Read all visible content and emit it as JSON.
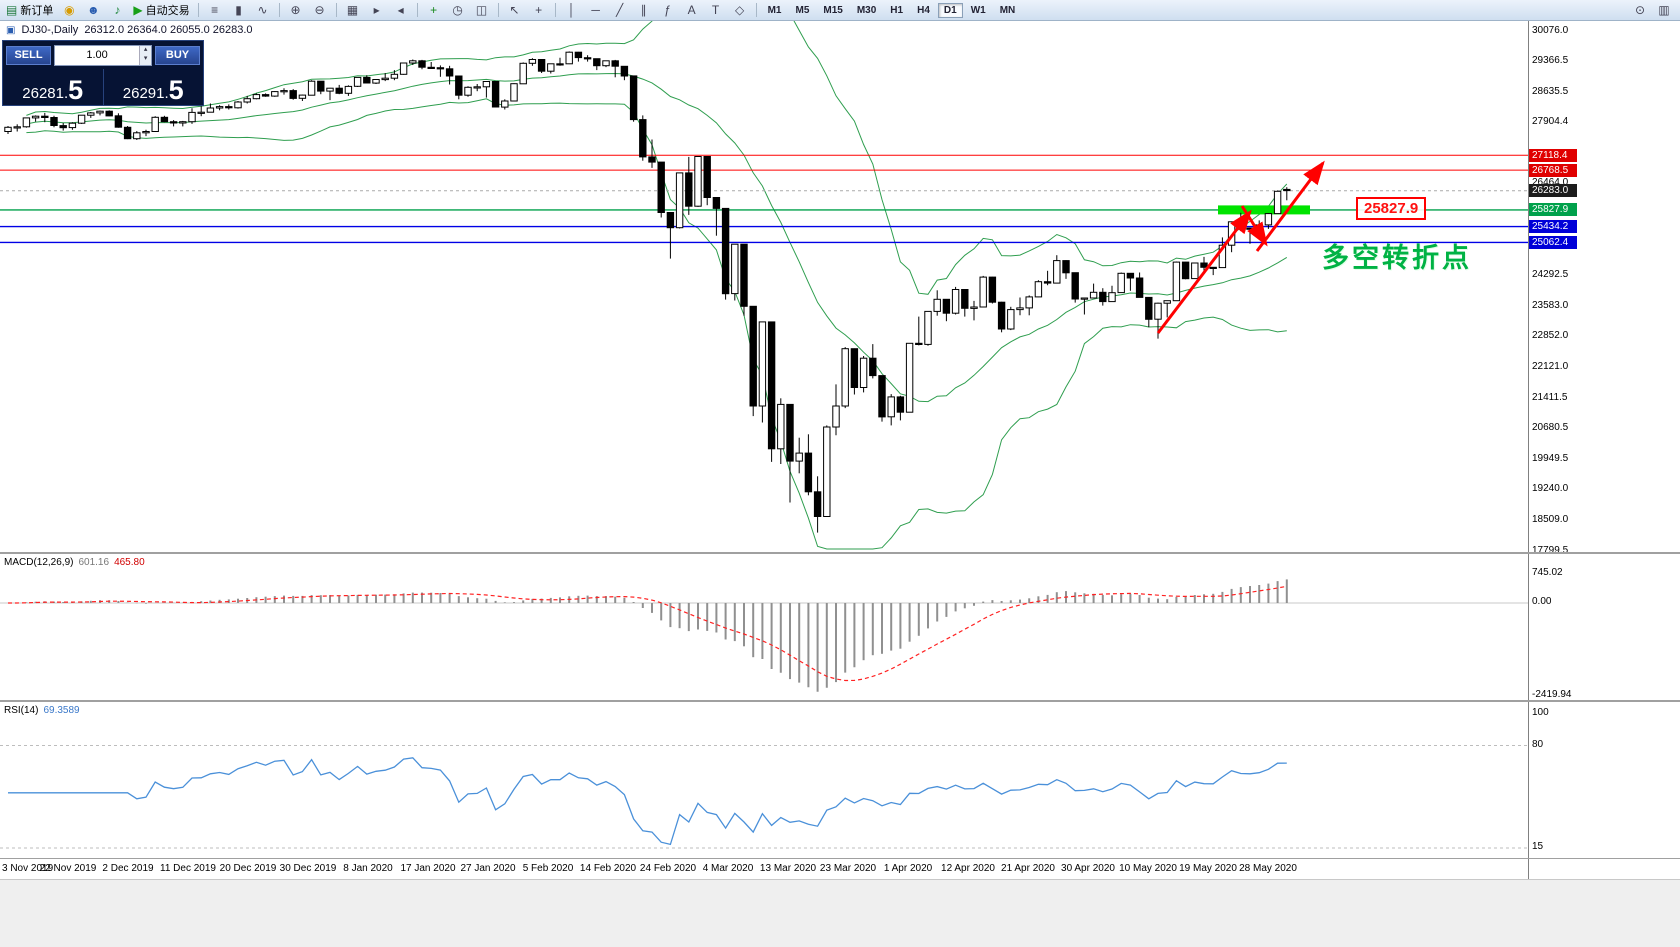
{
  "toolbar": {
    "left_items": [
      {
        "name": "new-order-button",
        "glyph": "▤",
        "glyph_color": "#1f7a3d",
        "label": "新订单"
      },
      {
        "name": "gold-icon",
        "glyph": "◉",
        "glyph_color": "#d79b00"
      },
      {
        "name": "profile-icon",
        "glyph": "☻",
        "glyph_color": "#2a5db0"
      },
      {
        "name": "sound-icon",
        "glyph": "♪",
        "glyph_color": "#22883e"
      },
      {
        "name": "autotrade-button",
        "glyph": "▶",
        "glyph_color": "#18a018",
        "label": "自动交易"
      }
    ],
    "groups": [
      {
        "name": "chart-type",
        "items": [
          {
            "name": "bar-chart-icon",
            "glyph": "≡"
          },
          {
            "name": "candlestick-icon",
            "glyph": "▮"
          },
          {
            "name": "line-chart-icon",
            "glyph": "∿"
          }
        ]
      },
      {
        "name": "zoom",
        "items": [
          {
            "name": "zoom-in-icon",
            "glyph": "⊕"
          },
          {
            "name": "zoom-out-icon",
            "glyph": "⊖"
          }
        ]
      },
      {
        "name": "windows",
        "items": [
          {
            "name": "tile-windows-icon",
            "glyph": "▦"
          },
          {
            "name": "auto-scroll-icon",
            "glyph": "▸"
          },
          {
            "name": "chart-shift-icon",
            "glyph": "◂"
          }
        ]
      },
      {
        "name": "indicators",
        "items": [
          {
            "name": "add-indicator-icon",
            "glyph": "+",
            "glyph_color": "#18891d"
          },
          {
            "name": "cycles-icon",
            "glyph": "◷"
          },
          {
            "name": "objects-list-icon",
            "glyph": "◫"
          }
        ]
      },
      {
        "name": "cursor",
        "items": [
          {
            "name": "cursor-icon",
            "glyph": "↖"
          },
          {
            "name": "crosshair-icon",
            "glyph": "+"
          }
        ]
      },
      {
        "name": "draw",
        "items": [
          {
            "name": "vertical-line-icon",
            "glyph": "│"
          },
          {
            "name": "horizontal-line-icon",
            "glyph": "─"
          },
          {
            "name": "trendline-icon",
            "glyph": "╱"
          },
          {
            "name": "channel-icon",
            "glyph": "∥"
          },
          {
            "name": "fibonacci-icon",
            "glyph": "ƒ"
          },
          {
            "name": "text-icon",
            "glyph": "A"
          },
          {
            "name": "label-icon",
            "glyph": "T"
          },
          {
            "name": "shapes-icon",
            "glyph": "◇"
          }
        ]
      }
    ],
    "timeframes": [
      {
        "label": "M1"
      },
      {
        "label": "M5"
      },
      {
        "label": "M15"
      },
      {
        "label": "M30"
      },
      {
        "label": "H1"
      },
      {
        "label": "H4"
      },
      {
        "label": "D1",
        "active": true
      },
      {
        "label": "W1"
      },
      {
        "label": "MN"
      }
    ],
    "right_items": [
      {
        "name": "search-icon",
        "glyph": "⊙"
      },
      {
        "name": "new-chart-icon",
        "glyph": "▥"
      }
    ]
  },
  "icons": {
    "chart_title_icon": "▣",
    "spinner_up": "▴",
    "spinner_down": "▾"
  },
  "quote_panel": {
    "sell_label": "SELL",
    "buy_label": "BUY",
    "volume": "1.00",
    "sell_price": "26281.5",
    "buy_price": "26291.5",
    "sell_price_small": "26281.",
    "sell_price_big": "5",
    "buy_price_small": "26291.",
    "buy_price_big": "5"
  },
  "chart": {
    "symbol_text": "DJ30-,Daily",
    "ohlc_text": "26312.0 26364.0 26055.0 26283.0",
    "y_axis": [
      {
        "text": "30076.0",
        "price": 30076.0,
        "kind": "regular"
      },
      {
        "text": "29366.5",
        "price": 29366.5,
        "kind": "regular"
      },
      {
        "text": "28635.5",
        "price": 28635.5,
        "kind": "regular"
      },
      {
        "text": "27904.4",
        "price": 27904.4,
        "kind": "regular"
      },
      {
        "text": "27118.4",
        "price": 27118.4,
        "kind": "red"
      },
      {
        "text": "26768.5",
        "price": 26768.5,
        "kind": "red"
      },
      {
        "text": "26464.0",
        "price": 26464.0,
        "kind": "regular"
      },
      {
        "text": "26283.0",
        "price": 26283.0,
        "kind": "current"
      },
      {
        "text": "25827.9",
        "price": 25827.9,
        "kind": "green"
      },
      {
        "text": "25434.2",
        "price": 25434.2,
        "kind": "blue"
      },
      {
        "text": "25062.4",
        "price": 25062.4,
        "kind": "blue"
      },
      {
        "text": "24292.5",
        "price": 24292.5,
        "kind": "regular"
      },
      {
        "text": "23583.0",
        "price": 23583.0,
        "kind": "regular"
      },
      {
        "text": "22852.0",
        "price": 22852.0,
        "kind": "regular"
      },
      {
        "text": "22121.0",
        "price": 22121.0,
        "kind": "regular"
      },
      {
        "text": "21411.5",
        "price": 21411.5,
        "kind": "regular"
      },
      {
        "text": "20680.5",
        "price": 20680.5,
        "kind": "regular"
      },
      {
        "text": "19949.5",
        "price": 19949.5,
        "kind": "regular"
      },
      {
        "text": "19240.0",
        "price": 19240.0,
        "kind": "regular"
      },
      {
        "text": "18509.0",
        "price": 18509.0,
        "kind": "regular"
      },
      {
        "text": "17799.5",
        "price": 17799.5,
        "kind": "regular"
      }
    ],
    "x_axis": [
      "3 Nov 2019",
      "22 Nov 2019",
      "2 Dec 2019",
      "11 Dec 2019",
      "20 Dec 2019",
      "30 Dec 2019",
      "8 Jan 2020",
      "17 Jan 2020",
      "27 Jan 2020",
      "5 Feb 2020",
      "14 Feb 2020",
      "24 Feb 2020",
      "4 Mar 2020",
      "13 Mar 2020",
      "23 Mar 2020",
      "1 Apr 2020",
      "12 Apr 2020",
      "21 Apr 2020",
      "30 Apr 2020",
      "10 May 2020",
      "19 May 2020",
      "28 May 2020"
    ]
  },
  "macd": {
    "label": "MACD(12,26,9)",
    "value_main": "601.16",
    "value_signal": "465.80",
    "axis": [
      {
        "text": "745.02",
        "value": 745.02
      },
      {
        "text": "0.00",
        "value": 0
      },
      {
        "text": "-2419.94",
        "value": -2419.94
      }
    ]
  },
  "rsi": {
    "label": "RSI(14)",
    "value": "69.3589",
    "axis": [
      {
        "text": "100",
        "value": 100
      },
      {
        "text": "80",
        "value": 80
      },
      {
        "text": "15",
        "value": 15
      }
    ]
  },
  "annotations": {
    "price_label": "25827.9",
    "turning_point_text": "多空转折点"
  },
  "chart_data": {
    "type": "candlestick",
    "symbol": "DJ30-",
    "timeframe": "Daily",
    "last_ohlc": {
      "open": 26312.0,
      "high": 26364.0,
      "low": 26055.0,
      "close": 26283.0
    },
    "ylim": [
      17799.5,
      30076.0
    ],
    "overlays": {
      "bollinger_bands": {
        "period": 20,
        "deviation": 2,
        "color": "#2f9e4f"
      },
      "horizontal_lines": [
        {
          "price": 27118.4,
          "color": "#ff0000"
        },
        {
          "price": 26768.5,
          "color": "#ff0000"
        },
        {
          "price": 25827.9,
          "color": "#00a14b"
        },
        {
          "price": 25434.2,
          "color": "#0000e6"
        },
        {
          "price": 25062.4,
          "color": "#0000e6"
        }
      ],
      "highlight_zone": {
        "price_center": 25827.9,
        "label": "25827.9"
      }
    },
    "indicators": [
      {
        "name": "MACD",
        "params": "12,26,9",
        "current": "601.16 465.80",
        "axis_labels": [
          "745.02",
          "0.00",
          "-2419.94"
        ]
      },
      {
        "name": "RSI",
        "params": "14",
        "current": "69.3589",
        "axis_labels": [
          "100",
          "80",
          "15"
        ]
      }
    ],
    "candles_ohlc": [
      [
        27680,
        27810,
        27620,
        27780
      ],
      [
        27780,
        27850,
        27680,
        27790
      ],
      [
        27790,
        28010,
        27770,
        28000
      ],
      [
        28000,
        28060,
        27910,
        28040
      ],
      [
        28040,
        28120,
        27900,
        28010
      ],
      [
        28010,
        28050,
        27780,
        27820
      ],
      [
        27820,
        27880,
        27700,
        27770
      ],
      [
        27770,
        27900,
        27720,
        27875
      ],
      [
        27875,
        28070,
        27860,
        28065
      ],
      [
        28065,
        28140,
        28000,
        28120
      ],
      [
        28120,
        28175,
        28060,
        28160
      ],
      [
        28160,
        28180,
        28040,
        28050
      ],
      [
        28050,
        28110,
        27770,
        27780
      ],
      [
        27780,
        27810,
        27500,
        27510
      ],
      [
        27510,
        27690,
        27480,
        27650
      ],
      [
        27650,
        27720,
        27570,
        27680
      ],
      [
        27680,
        28040,
        27670,
        28015
      ],
      [
        28015,
        28050,
        27900,
        27910
      ],
      [
        27910,
        27950,
        27800,
        27880
      ],
      [
        27880,
        27930,
        27800,
        27910
      ],
      [
        27910,
        28230,
        27860,
        28130
      ],
      [
        28130,
        28290,
        28040,
        28135
      ],
      [
        28135,
        28340,
        28130,
        28235
      ],
      [
        28235,
        28300,
        28180,
        28267
      ],
      [
        28267,
        28320,
        28200,
        28240
      ],
      [
        28240,
        28400,
        28220,
        28377
      ],
      [
        28377,
        28520,
        28340,
        28455
      ],
      [
        28455,
        28580,
        28440,
        28551
      ],
      [
        28551,
        28580,
        28500,
        28515
      ],
      [
        28515,
        28630,
        28500,
        28621
      ],
      [
        28621,
        28700,
        28550,
        28645
      ],
      [
        28645,
        28680,
        28430,
        28462
      ],
      [
        28462,
        28550,
        28400,
        28538
      ],
      [
        28538,
        28890,
        28530,
        28868
      ],
      [
        28868,
        28870,
        28560,
        28634
      ],
      [
        28634,
        28710,
        28420,
        28703
      ],
      [
        28703,
        28780,
        28560,
        28583
      ],
      [
        28583,
        28770,
        28520,
        28745
      ],
      [
        28745,
        28960,
        28730,
        28956
      ],
      [
        28956,
        29010,
        28820,
        28823
      ],
      [
        28823,
        28910,
        28800,
        28907
      ],
      [
        28907,
        29060,
        28870,
        28939
      ],
      [
        28939,
        29130,
        28890,
        29030
      ],
      [
        29030,
        29300,
        29020,
        29297
      ],
      [
        29297,
        29380,
        29250,
        29348
      ],
      [
        29348,
        29370,
        29150,
        29196
      ],
      [
        29196,
        29320,
        29160,
        29186
      ],
      [
        29186,
        29240,
        28970,
        29160
      ],
      [
        29160,
        29230,
        28790,
        28990
      ],
      [
        28990,
        28990,
        28440,
        28536
      ],
      [
        28536,
        28750,
        28500,
        28723
      ],
      [
        28723,
        28800,
        28630,
        28734
      ],
      [
        28734,
        28870,
        28480,
        28859
      ],
      [
        28859,
        28860,
        28250,
        28256
      ],
      [
        28256,
        28440,
        28200,
        28400
      ],
      [
        28400,
        28820,
        28390,
        28808
      ],
      [
        28808,
        29310,
        28800,
        29291
      ],
      [
        29291,
        29410,
        29230,
        29380
      ],
      [
        29380,
        29390,
        29060,
        29103
      ],
      [
        29103,
        29280,
        29050,
        29277
      ],
      [
        29277,
        29420,
        29230,
        29276
      ],
      [
        29276,
        29570,
        29270,
        29551
      ],
      [
        29551,
        29560,
        29330,
        29423
      ],
      [
        29423,
        29480,
        29330,
        29398
      ],
      [
        29398,
        29400,
        29130,
        29232
      ],
      [
        29232,
        29350,
        29200,
        29348
      ],
      [
        29348,
        29370,
        28960,
        29220
      ],
      [
        29220,
        29220,
        28890,
        28992
      ],
      [
        28992,
        28995,
        27910,
        27961
      ],
      [
        27961,
        28060,
        26990,
        27081
      ],
      [
        27081,
        27490,
        26820,
        26958
      ],
      [
        26958,
        26960,
        25650,
        25767
      ],
      [
        25767,
        25780,
        24680,
        25409
      ],
      [
        25409,
        26710,
        25390,
        26703
      ],
      [
        26703,
        27080,
        25710,
        25917
      ],
      [
        25917,
        27100,
        25900,
        27090
      ],
      [
        27090,
        27090,
        25940,
        26121
      ],
      [
        26121,
        26130,
        25220,
        25864
      ],
      [
        25864,
        25870,
        23710,
        23851
      ],
      [
        23851,
        25020,
        23690,
        25018
      ],
      [
        25018,
        25020,
        23330,
        23553
      ],
      [
        23553,
        23560,
        20960,
        21200
      ],
      [
        21200,
        23190,
        20810,
        23185
      ],
      [
        23185,
        23190,
        19880,
        20188
      ],
      [
        20188,
        21380,
        19830,
        21237
      ],
      [
        21237,
        21240,
        18920,
        19898
      ],
      [
        19898,
        20450,
        19610,
        20087
      ],
      [
        20087,
        20530,
        19090,
        19173
      ],
      [
        19173,
        19540,
        18210,
        18591
      ],
      [
        18591,
        20740,
        18590,
        20704
      ],
      [
        20704,
        21710,
        20510,
        21200
      ],
      [
        21200,
        22590,
        21150,
        22552
      ],
      [
        22552,
        22560,
        21470,
        21636
      ],
      [
        21636,
        22380,
        21520,
        22327
      ],
      [
        22327,
        22660,
        21850,
        21917
      ],
      [
        21917,
        21920,
        20830,
        20943
      ],
      [
        20943,
        21480,
        20740,
        21413
      ],
      [
        21413,
        21440,
        20860,
        21052
      ],
      [
        21052,
        22680,
        21050,
        22679
      ],
      [
        22679,
        23310,
        22630,
        22653
      ],
      [
        22653,
        23440,
        22620,
        23433
      ],
      [
        23433,
        23930,
        23330,
        23719
      ],
      [
        23719,
        23720,
        23200,
        23390
      ],
      [
        23390,
        24010,
        23360,
        23949
      ],
      [
        23949,
        23950,
        23310,
        23504
      ],
      [
        23504,
        23680,
        23220,
        23537
      ],
      [
        23537,
        24270,
        23530,
        24242
      ],
      [
        24242,
        24250,
        23620,
        23650
      ],
      [
        23650,
        23660,
        22940,
        23018
      ],
      [
        23018,
        23540,
        22990,
        23475
      ],
      [
        23475,
        23760,
        23340,
        23515
      ],
      [
        23515,
        23810,
        23340,
        23775
      ],
      [
        23775,
        24170,
        23770,
        24133
      ],
      [
        24133,
        24390,
        24050,
        24101
      ],
      [
        24101,
        24760,
        24100,
        24633
      ],
      [
        24633,
        24640,
        24200,
        24345
      ],
      [
        24345,
        24350,
        23640,
        23723
      ],
      [
        23723,
        23760,
        23360,
        23749
      ],
      [
        23749,
        24090,
        23740,
        23883
      ],
      [
        23883,
        23980,
        23570,
        23664
      ],
      [
        23664,
        24040,
        23660,
        23875
      ],
      [
        23875,
        24350,
        23870,
        24331
      ],
      [
        24331,
        24340,
        23920,
        24221
      ],
      [
        24221,
        24350,
        23760,
        23764
      ],
      [
        23764,
        23770,
        23060,
        23247
      ],
      [
        23247,
        23640,
        22790,
        23625
      ],
      [
        23625,
        23690,
        23290,
        23685
      ],
      [
        23685,
        24610,
        23680,
        24597
      ],
      [
        24597,
        24600,
        24190,
        24206
      ],
      [
        24206,
        24580,
        24200,
        24575
      ],
      [
        24575,
        24720,
        24370,
        24474
      ],
      [
        24474,
        24480,
        24290,
        24465
      ],
      [
        24465,
        25180,
        24460,
        24995
      ],
      [
        24995,
        25550,
        24830,
        25548
      ],
      [
        25548,
        25760,
        25330,
        25400
      ],
      [
        25400,
        25410,
        25030,
        25383
      ],
      [
        25383,
        25580,
        25320,
        25475
      ],
      [
        25475,
        25750,
        25380,
        25742
      ],
      [
        25742,
        26290,
        25740,
        26269
      ],
      [
        26312,
        26364,
        26055,
        26283
      ]
    ]
  }
}
